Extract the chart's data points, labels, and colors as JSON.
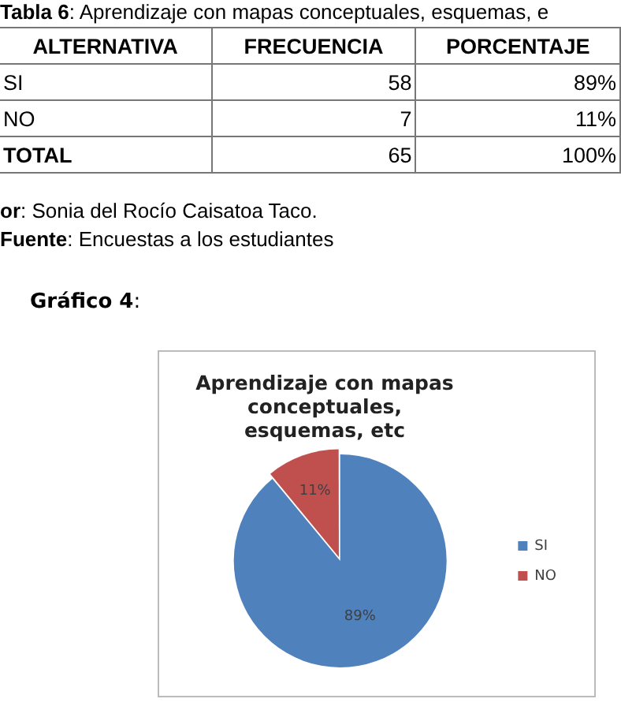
{
  "chart_data": {
    "type": "pie",
    "title": "Aprendizaje con mapas conceptuales, esquemas, etc",
    "categories": [
      "SI",
      "NO"
    ],
    "values": [
      89,
      11
    ],
    "colors": [
      "#4f81bd",
      "#c0504d"
    ],
    "value_labels": [
      "89%",
      "11%"
    ],
    "legend": "right",
    "annotations": [
      "Tabla 6: Aprendizaje con mapas conceptuales, esquemas, e",
      "ALTERNATIVA",
      "FRECUENCIA",
      "PORCENTAJE",
      "SI",
      "58",
      "89%",
      "NO",
      "7",
      "11%",
      "TOTAL",
      "65",
      "100%",
      "or: Sonia del Rocío Caisatoa Taco.",
      "Fuente: Encuestas a los estudiantes",
      "Gráfico 4:"
    ]
  }
}
